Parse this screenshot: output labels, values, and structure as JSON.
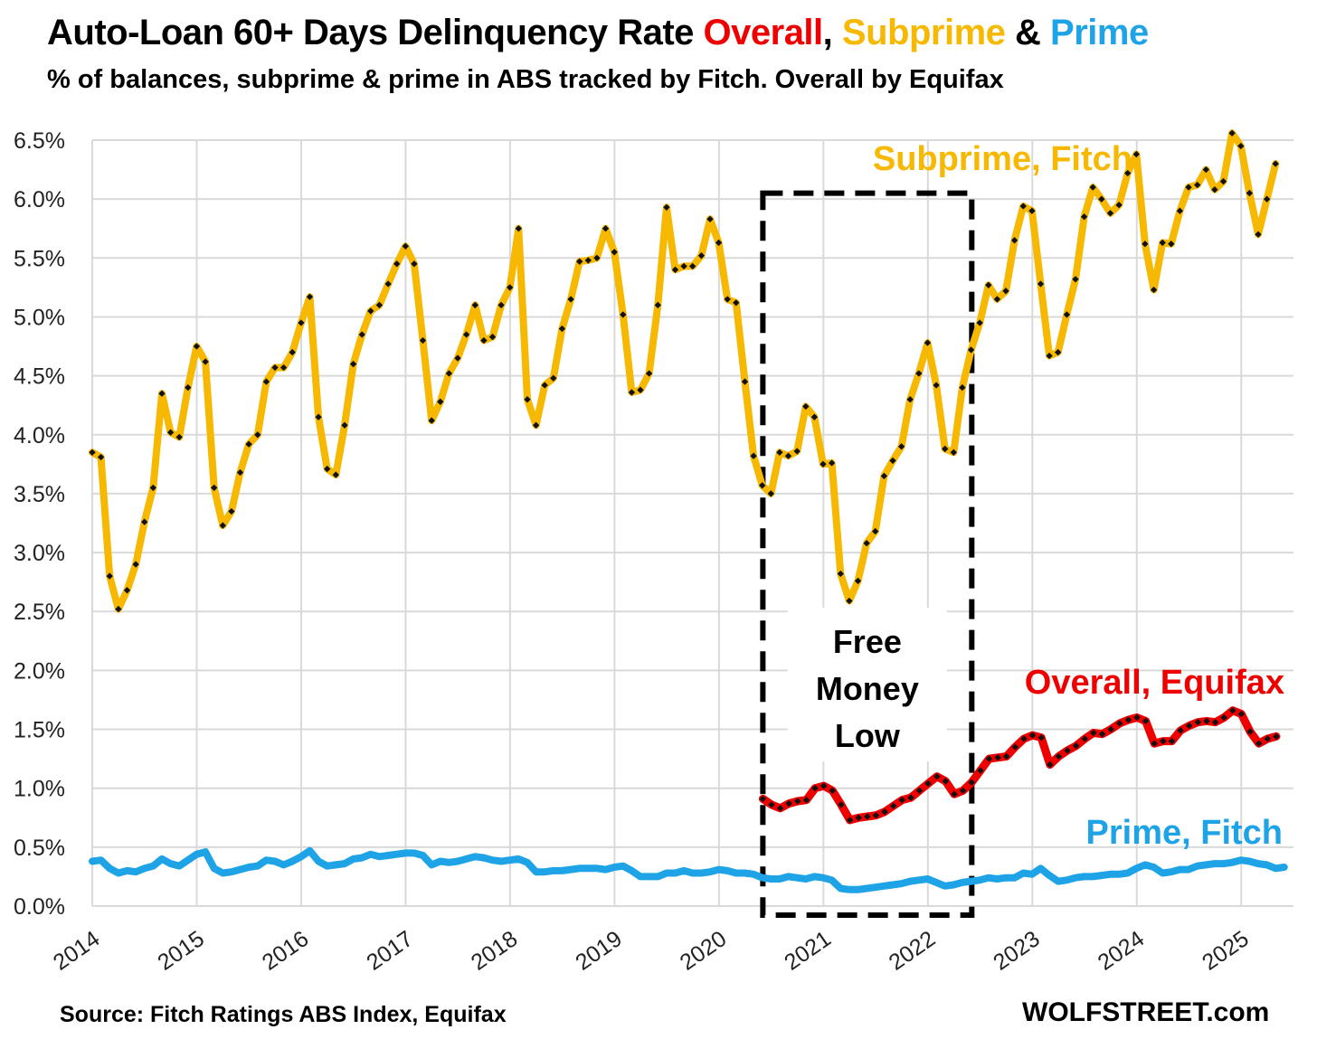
{
  "header": {
    "title_prefix": "Auto-Loan 60+ Days Delinquency Rate ",
    "title_overall": "Overall",
    "title_sep1": ", ",
    "title_subprime": "Subprime",
    "title_sep2": " & ",
    "title_prime": "Prime",
    "subtitle": "% of balances, subprime & prime in ABS tracked by Fitch. Overall by Equifax"
  },
  "footer": {
    "source": "Source: Fitch Ratings ABS Index, Equifax",
    "brand": "WOLFSTREET.com"
  },
  "colors": {
    "subprime": "#f6b800",
    "overall": "#ee0000",
    "prime": "#1ea3e6",
    "grid": "#d9d9d9",
    "marker": "#111111"
  },
  "chart_data": {
    "type": "line",
    "title": "Auto-Loan 60+ Days Delinquency Rate Overall, Subprime & Prime",
    "xlabel": "",
    "ylabel": "",
    "xlim": [
      2014.0,
      2025.5
    ],
    "ylim": [
      0,
      6.5
    ],
    "grid": true,
    "x_ticks": [
      "2014",
      "2015",
      "2016",
      "2017",
      "2018",
      "2019",
      "2020",
      "2021",
      "2022",
      "2023",
      "2024",
      "2025"
    ],
    "y_ticks": [
      "0.0%",
      "0.5%",
      "1.0%",
      "1.5%",
      "2.0%",
      "2.5%",
      "3.0%",
      "3.5%",
      "4.0%",
      "4.5%",
      "5.0%",
      "5.5%",
      "6.0%",
      "6.5%"
    ],
    "series": [
      {
        "name": "Subprime, Fitch",
        "key": "subprime",
        "start": 2014.0,
        "step": 0.0833,
        "values": [
          3.85,
          3.81,
          2.8,
          2.52,
          2.68,
          2.9,
          3.26,
          3.55,
          4.35,
          4.02,
          3.98,
          4.4,
          4.75,
          4.62,
          3.55,
          3.23,
          3.35,
          3.68,
          3.92,
          4.0,
          4.45,
          4.57,
          4.57,
          4.7,
          4.95,
          5.17,
          4.15,
          3.71,
          3.66,
          4.08,
          4.6,
          4.85,
          5.05,
          5.1,
          5.28,
          5.45,
          5.6,
          5.45,
          4.8,
          4.12,
          4.28,
          4.52,
          4.65,
          4.85,
          5.1,
          4.8,
          4.83,
          5.1,
          5.25,
          5.75,
          4.3,
          4.08,
          4.42,
          4.48,
          4.9,
          5.15,
          5.47,
          5.48,
          5.5,
          5.75,
          5.55,
          5.02,
          4.36,
          4.38,
          4.52,
          5.1,
          5.93,
          5.4,
          5.43,
          5.43,
          5.52,
          5.83,
          5.63,
          5.15,
          5.12,
          4.45,
          3.82,
          3.57,
          3.5,
          3.85,
          3.82,
          3.86,
          4.24,
          4.15,
          3.75,
          3.76,
          2.82,
          2.59,
          2.76,
          3.08,
          3.18,
          3.65,
          3.78,
          3.9,
          4.3,
          4.52,
          4.78,
          4.42,
          3.88,
          3.85,
          4.4,
          4.72,
          4.95,
          5.27,
          5.15,
          5.22,
          5.65,
          5.94,
          5.9,
          5.28,
          4.67,
          4.7,
          5.02,
          5.32,
          5.85,
          6.1,
          6.0,
          5.88,
          5.95,
          6.22,
          6.38,
          5.62,
          5.23,
          5.63,
          5.62,
          5.9,
          6.1,
          6.12,
          6.25,
          6.08,
          6.15,
          6.56,
          6.45,
          6.05,
          5.7,
          6.0,
          6.3
        ]
      },
      {
        "name": "Overall, Equifax",
        "key": "overall",
        "start": 2020.42,
        "step": 0.0833,
        "values": [
          0.91,
          0.86,
          0.83,
          0.87,
          0.89,
          0.9,
          1.0,
          1.02,
          0.98,
          0.86,
          0.73,
          0.75,
          0.76,
          0.77,
          0.8,
          0.85,
          0.9,
          0.92,
          0.98,
          1.04,
          1.1,
          1.06,
          0.95,
          0.98,
          1.05,
          1.15,
          1.25,
          1.26,
          1.27,
          1.35,
          1.42,
          1.45,
          1.43,
          1.2,
          1.27,
          1.32,
          1.36,
          1.42,
          1.47,
          1.46,
          1.5,
          1.55,
          1.58,
          1.6,
          1.57,
          1.38,
          1.4,
          1.4,
          1.49,
          1.53,
          1.56,
          1.57,
          1.56,
          1.6,
          1.66,
          1.63,
          1.48,
          1.38,
          1.42,
          1.44
        ]
      },
      {
        "name": "Prime, Fitch",
        "key": "prime",
        "start": 2014.0,
        "step": 0.0833,
        "values": [
          0.38,
          0.39,
          0.32,
          0.28,
          0.3,
          0.29,
          0.32,
          0.34,
          0.4,
          0.36,
          0.34,
          0.39,
          0.44,
          0.46,
          0.32,
          0.28,
          0.29,
          0.31,
          0.33,
          0.34,
          0.39,
          0.38,
          0.35,
          0.38,
          0.42,
          0.47,
          0.38,
          0.34,
          0.35,
          0.36,
          0.4,
          0.41,
          0.44,
          0.42,
          0.43,
          0.44,
          0.45,
          0.45,
          0.43,
          0.35,
          0.38,
          0.37,
          0.38,
          0.4,
          0.42,
          0.41,
          0.39,
          0.38,
          0.39,
          0.4,
          0.37,
          0.29,
          0.29,
          0.3,
          0.3,
          0.31,
          0.32,
          0.32,
          0.32,
          0.31,
          0.33,
          0.34,
          0.3,
          0.25,
          0.25,
          0.25,
          0.28,
          0.28,
          0.3,
          0.28,
          0.28,
          0.29,
          0.31,
          0.3,
          0.28,
          0.28,
          0.27,
          0.24,
          0.23,
          0.23,
          0.25,
          0.24,
          0.23,
          0.25,
          0.24,
          0.22,
          0.15,
          0.14,
          0.14,
          0.15,
          0.16,
          0.17,
          0.18,
          0.19,
          0.21,
          0.22,
          0.23,
          0.2,
          0.17,
          0.18,
          0.2,
          0.21,
          0.22,
          0.24,
          0.23,
          0.24,
          0.24,
          0.28,
          0.27,
          0.32,
          0.26,
          0.21,
          0.22,
          0.24,
          0.25,
          0.25,
          0.26,
          0.27,
          0.27,
          0.28,
          0.32,
          0.35,
          0.33,
          0.28,
          0.29,
          0.31,
          0.31,
          0.34,
          0.35,
          0.36,
          0.36,
          0.37,
          0.39,
          0.38,
          0.36,
          0.35,
          0.32,
          0.33
        ]
      }
    ],
    "annotations": {
      "subprime_label": "Subprime, Fitch",
      "overall_label": "Overall, Equifax",
      "prime_label": "Prime, Fitch",
      "box_lines": [
        "Free",
        "Money",
        "Low"
      ],
      "box_range": {
        "x_from": 2020.42,
        "x_to": 2022.42,
        "y_from": 0,
        "y_to": 6.05
      }
    }
  }
}
